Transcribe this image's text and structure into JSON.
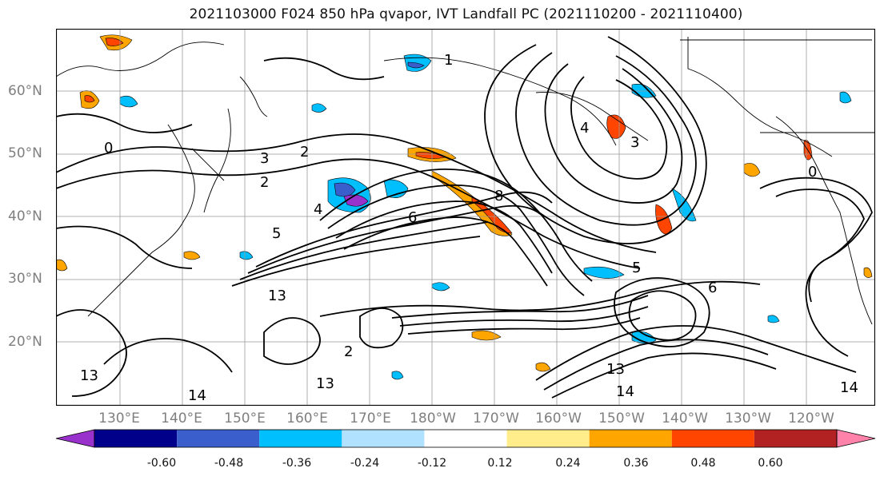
{
  "title": "2021103000 F024 850 hPa qvapor, IVT Landfall PC (2021110200 - 2021110400)",
  "lat_labels": [
    "60°N",
    "50°N",
    "40°N",
    "30°N",
    "20°N"
  ],
  "lon_labels": [
    "130°E",
    "140°E",
    "150°E",
    "160°E",
    "170°E",
    "180°W",
    "170°W",
    "160°W",
    "150°W",
    "140°W",
    "130°W",
    "120°W"
  ],
  "contour_labels": [
    "0",
    "2",
    "3",
    "2",
    "4",
    "5",
    "6",
    "8",
    "13",
    "13",
    "14",
    "13",
    "13",
    "14",
    "14",
    "2",
    "5",
    "6",
    "4",
    "3",
    "1",
    "0"
  ],
  "colorbar": {
    "colors": [
      "#9932cc",
      "#00008b",
      "#3a5fcd",
      "#00bfff",
      "#b0e2ff",
      "#ffffff",
      "#ffec8b",
      "#ffa500",
      "#ff4500",
      "#b22222",
      "#ff82ab"
    ],
    "ticks": [
      "-0.60",
      "-0.48",
      "-0.36",
      "-0.24",
      "-0.12",
      "0.12",
      "0.24",
      "0.36",
      "0.48",
      "0.60"
    ]
  }
}
